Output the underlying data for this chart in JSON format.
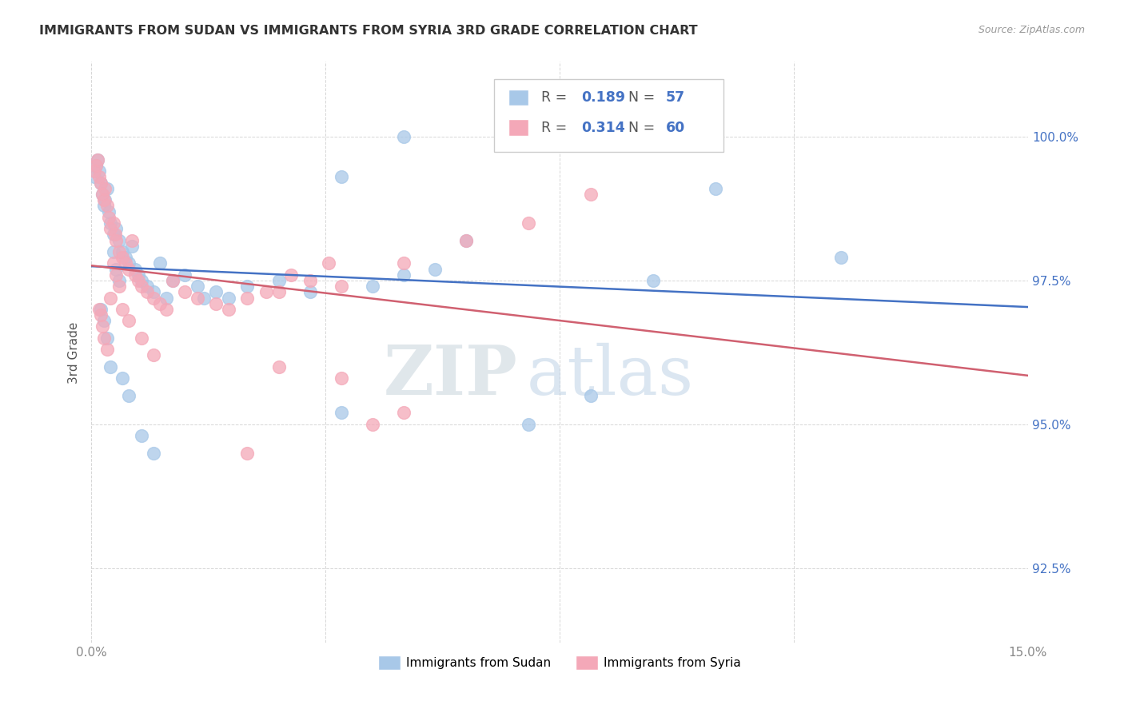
{
  "title": "IMMIGRANTS FROM SUDAN VS IMMIGRANTS FROM SYRIA 3RD GRADE CORRELATION CHART",
  "source": "Source: ZipAtlas.com",
  "ylabel": "3rd Grade",
  "xlim": [
    0.0,
    15.0
  ],
  "ylim": [
    91.2,
    101.3
  ],
  "yticks": [
    92.5,
    95.0,
    97.5,
    100.0
  ],
  "ytick_labels": [
    "92.5%",
    "95.0%",
    "97.5%",
    "100.0%"
  ],
  "xticks": [
    0.0,
    3.75,
    7.5,
    11.25,
    15.0
  ],
  "xtick_labels": [
    "0.0%",
    "",
    "",
    "",
    "15.0%"
  ],
  "sudan_color": "#a8c8e8",
  "syria_color": "#f4a8b8",
  "sudan_line_color": "#4472c4",
  "syria_line_color": "#d06070",
  "legend_R_sudan": "0.189",
  "legend_N_sudan": "57",
  "legend_R_syria": "0.314",
  "legend_N_syria": "60",
  "sudan_label": "Immigrants from Sudan",
  "syria_label": "Immigrants from Syria",
  "background_color": "#ffffff",
  "grid_color": "#cccccc",
  "sudan_x": [
    0.05,
    0.08,
    0.1,
    0.12,
    0.15,
    0.18,
    0.2,
    0.22,
    0.25,
    0.28,
    0.3,
    0.35,
    0.4,
    0.45,
    0.5,
    0.55,
    0.6,
    0.65,
    0.7,
    0.75,
    0.8,
    0.9,
    1.0,
    1.1,
    1.2,
    1.3,
    1.5,
    1.7,
    2.0,
    2.2,
    2.5,
    3.0,
    3.5,
    4.0,
    4.5,
    5.0,
    5.5,
    6.0,
    7.0,
    8.0,
    9.0,
    10.0,
    12.0,
    1.8,
    0.35,
    0.4,
    0.45,
    0.15,
    0.2,
    0.25,
    0.3,
    0.5,
    0.6,
    0.8,
    1.0,
    4.0,
    5.0
  ],
  "sudan_y": [
    99.3,
    99.5,
    99.6,
    99.4,
    99.2,
    99.0,
    98.8,
    98.9,
    99.1,
    98.7,
    98.5,
    98.3,
    98.4,
    98.2,
    98.0,
    97.9,
    97.8,
    98.1,
    97.7,
    97.6,
    97.5,
    97.4,
    97.3,
    97.8,
    97.2,
    97.5,
    97.6,
    97.4,
    97.3,
    97.2,
    97.4,
    97.5,
    97.3,
    95.2,
    97.4,
    97.6,
    97.7,
    98.2,
    95.0,
    95.5,
    97.5,
    99.1,
    97.9,
    97.2,
    98.0,
    97.7,
    97.5,
    97.0,
    96.8,
    96.5,
    96.0,
    95.8,
    95.5,
    94.8,
    94.5,
    99.3,
    100.0
  ],
  "syria_x": [
    0.05,
    0.08,
    0.1,
    0.12,
    0.15,
    0.18,
    0.2,
    0.22,
    0.25,
    0.28,
    0.3,
    0.35,
    0.38,
    0.4,
    0.45,
    0.5,
    0.55,
    0.6,
    0.65,
    0.7,
    0.75,
    0.8,
    0.9,
    1.0,
    1.1,
    1.2,
    1.3,
    1.5,
    1.7,
    2.0,
    2.2,
    2.5,
    3.0,
    3.5,
    4.0,
    4.5,
    5.0,
    0.35,
    0.4,
    0.45,
    0.3,
    0.5,
    0.6,
    0.8,
    1.0,
    3.0,
    4.0,
    0.25,
    0.2,
    0.18,
    0.15,
    0.12,
    2.5,
    5.0,
    6.0,
    7.0,
    8.0,
    2.8,
    3.2,
    3.8
  ],
  "syria_y": [
    99.4,
    99.5,
    99.6,
    99.3,
    99.2,
    99.0,
    98.9,
    99.1,
    98.8,
    98.6,
    98.4,
    98.5,
    98.3,
    98.2,
    98.0,
    97.9,
    97.8,
    97.7,
    98.2,
    97.6,
    97.5,
    97.4,
    97.3,
    97.2,
    97.1,
    97.0,
    97.5,
    97.3,
    97.2,
    97.1,
    97.0,
    97.2,
    97.3,
    97.5,
    97.4,
    95.0,
    95.2,
    97.8,
    97.6,
    97.4,
    97.2,
    97.0,
    96.8,
    96.5,
    96.2,
    96.0,
    95.8,
    96.3,
    96.5,
    96.7,
    96.9,
    97.0,
    94.5,
    97.8,
    98.2,
    98.5,
    99.0,
    97.3,
    97.6,
    97.8
  ]
}
